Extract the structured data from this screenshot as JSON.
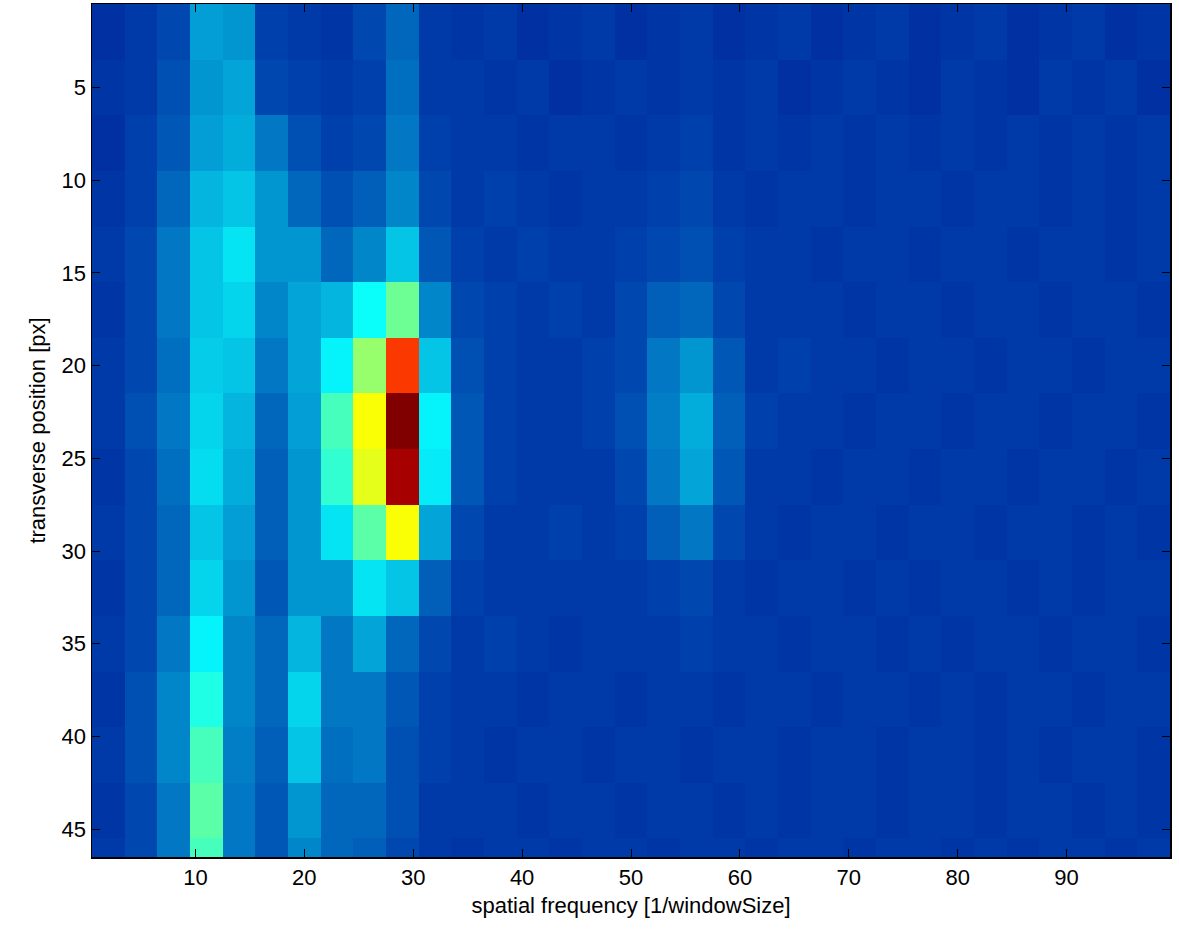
{
  "chart_data": {
    "type": "heatmap",
    "x_label": "spatial frequency [1/windowSize]",
    "y_label": "transverse position [px]",
    "color": "jet",
    "xlim": [
      0.5,
      99.5
    ],
    "ylim": [
      46.5,
      0.5
    ],
    "xticks": [
      10,
      20,
      30,
      40,
      50,
      60,
      70,
      80,
      90
    ],
    "yticks": [
      5,
      10,
      15,
      20,
      25,
      30,
      35,
      40,
      45
    ],
    "zlim": [
      0,
      1
    ],
    "x": [
      2,
      5,
      8,
      11,
      14,
      17,
      20,
      23,
      26,
      29,
      32,
      35,
      38,
      41,
      44,
      47,
      50,
      53,
      56,
      59,
      62,
      65,
      68,
      71,
      74,
      77,
      80,
      83,
      86,
      89,
      92,
      95,
      98
    ],
    "y": [
      2,
      5,
      8,
      11,
      14,
      17,
      20,
      23,
      26,
      29,
      32,
      35,
      38,
      41,
      44,
      47
    ],
    "z": [
      [
        0.1,
        0.12,
        0.14,
        0.25,
        0.24,
        0.13,
        0.12,
        0.11,
        0.14,
        0.18,
        0.12,
        0.11,
        0.12,
        0.1,
        0.11,
        0.12,
        0.1,
        0.11,
        0.12,
        0.1,
        0.11,
        0.12,
        0.1,
        0.11,
        0.12,
        0.1,
        0.11,
        0.12,
        0.1,
        0.11,
        0.12,
        0.1,
        0.11
      ],
      [
        0.11,
        0.12,
        0.15,
        0.24,
        0.26,
        0.14,
        0.13,
        0.12,
        0.13,
        0.19,
        0.12,
        0.12,
        0.11,
        0.12,
        0.1,
        0.11,
        0.12,
        0.11,
        0.12,
        0.11,
        0.12,
        0.1,
        0.11,
        0.12,
        0.11,
        0.1,
        0.12,
        0.11,
        0.1,
        0.12,
        0.11,
        0.12,
        0.1
      ],
      [
        0.1,
        0.13,
        0.16,
        0.25,
        0.27,
        0.2,
        0.15,
        0.13,
        0.14,
        0.2,
        0.13,
        0.12,
        0.12,
        0.11,
        0.12,
        0.12,
        0.11,
        0.12,
        0.13,
        0.11,
        0.12,
        0.11,
        0.12,
        0.11,
        0.12,
        0.11,
        0.12,
        0.11,
        0.12,
        0.11,
        0.12,
        0.11,
        0.12
      ],
      [
        0.11,
        0.13,
        0.18,
        0.28,
        0.3,
        0.24,
        0.18,
        0.15,
        0.17,
        0.22,
        0.14,
        0.12,
        0.13,
        0.12,
        0.11,
        0.12,
        0.12,
        0.13,
        0.14,
        0.12,
        0.11,
        0.12,
        0.12,
        0.11,
        0.12,
        0.12,
        0.11,
        0.12,
        0.12,
        0.11,
        0.12,
        0.11,
        0.12
      ],
      [
        0.12,
        0.14,
        0.2,
        0.3,
        0.34,
        0.24,
        0.24,
        0.18,
        0.22,
        0.3,
        0.16,
        0.13,
        0.12,
        0.13,
        0.12,
        0.12,
        0.13,
        0.14,
        0.15,
        0.13,
        0.12,
        0.12,
        0.11,
        0.12,
        0.12,
        0.11,
        0.12,
        0.12,
        0.11,
        0.12,
        0.12,
        0.11,
        0.12
      ],
      [
        0.11,
        0.14,
        0.2,
        0.3,
        0.32,
        0.22,
        0.26,
        0.28,
        0.38,
        0.48,
        0.22,
        0.14,
        0.13,
        0.12,
        0.13,
        0.12,
        0.14,
        0.17,
        0.18,
        0.14,
        0.12,
        0.12,
        0.12,
        0.11,
        0.12,
        0.12,
        0.11,
        0.12,
        0.12,
        0.11,
        0.12,
        0.12,
        0.11
      ],
      [
        0.12,
        0.14,
        0.19,
        0.31,
        0.3,
        0.2,
        0.26,
        0.36,
        0.52,
        0.82,
        0.3,
        0.15,
        0.13,
        0.12,
        0.12,
        0.13,
        0.14,
        0.2,
        0.24,
        0.16,
        0.12,
        0.13,
        0.12,
        0.12,
        0.11,
        0.12,
        0.12,
        0.11,
        0.12,
        0.12,
        0.11,
        0.12,
        0.12
      ],
      [
        0.12,
        0.15,
        0.2,
        0.32,
        0.28,
        0.18,
        0.25,
        0.44,
        0.62,
        1.0,
        0.36,
        0.16,
        0.13,
        0.12,
        0.12,
        0.13,
        0.15,
        0.21,
        0.27,
        0.17,
        0.13,
        0.12,
        0.12,
        0.11,
        0.12,
        0.12,
        0.11,
        0.12,
        0.12,
        0.11,
        0.12,
        0.12,
        0.11
      ],
      [
        0.11,
        0.14,
        0.19,
        0.33,
        0.27,
        0.17,
        0.24,
        0.42,
        0.6,
        0.96,
        0.35,
        0.16,
        0.13,
        0.12,
        0.12,
        0.12,
        0.14,
        0.2,
        0.26,
        0.16,
        0.12,
        0.12,
        0.11,
        0.12,
        0.12,
        0.11,
        0.12,
        0.12,
        0.11,
        0.12,
        0.12,
        0.11,
        0.12
      ],
      [
        0.12,
        0.14,
        0.18,
        0.3,
        0.25,
        0.17,
        0.24,
        0.34,
        0.46,
        0.62,
        0.26,
        0.14,
        0.12,
        0.12,
        0.13,
        0.12,
        0.13,
        0.17,
        0.2,
        0.14,
        0.12,
        0.11,
        0.12,
        0.12,
        0.11,
        0.12,
        0.12,
        0.11,
        0.12,
        0.12,
        0.11,
        0.12,
        0.11
      ],
      [
        0.11,
        0.14,
        0.18,
        0.32,
        0.24,
        0.16,
        0.24,
        0.24,
        0.34,
        0.3,
        0.17,
        0.13,
        0.12,
        0.12,
        0.12,
        0.12,
        0.12,
        0.13,
        0.14,
        0.12,
        0.11,
        0.12,
        0.12,
        0.11,
        0.12,
        0.11,
        0.12,
        0.12,
        0.11,
        0.12,
        0.11,
        0.12,
        0.12
      ],
      [
        0.12,
        0.14,
        0.2,
        0.36,
        0.22,
        0.18,
        0.28,
        0.2,
        0.26,
        0.18,
        0.14,
        0.12,
        0.13,
        0.12,
        0.11,
        0.12,
        0.12,
        0.12,
        0.13,
        0.12,
        0.12,
        0.11,
        0.12,
        0.12,
        0.11,
        0.12,
        0.11,
        0.12,
        0.12,
        0.11,
        0.12,
        0.12,
        0.11
      ],
      [
        0.11,
        0.15,
        0.22,
        0.4,
        0.22,
        0.18,
        0.32,
        0.2,
        0.2,
        0.16,
        0.13,
        0.12,
        0.12,
        0.11,
        0.12,
        0.12,
        0.11,
        0.12,
        0.12,
        0.11,
        0.12,
        0.12,
        0.11,
        0.12,
        0.12,
        0.11,
        0.12,
        0.11,
        0.12,
        0.12,
        0.11,
        0.12,
        0.12
      ],
      [
        0.12,
        0.15,
        0.22,
        0.44,
        0.21,
        0.17,
        0.3,
        0.19,
        0.2,
        0.15,
        0.13,
        0.12,
        0.11,
        0.12,
        0.12,
        0.11,
        0.12,
        0.12,
        0.11,
        0.12,
        0.12,
        0.11,
        0.12,
        0.12,
        0.11,
        0.12,
        0.12,
        0.11,
        0.12,
        0.11,
        0.12,
        0.12,
        0.11
      ],
      [
        0.11,
        0.14,
        0.2,
        0.46,
        0.2,
        0.16,
        0.24,
        0.18,
        0.18,
        0.15,
        0.12,
        0.12,
        0.12,
        0.11,
        0.12,
        0.12,
        0.11,
        0.12,
        0.12,
        0.11,
        0.12,
        0.11,
        0.12,
        0.12,
        0.11,
        0.12,
        0.12,
        0.11,
        0.12,
        0.12,
        0.11,
        0.12,
        0.11
      ],
      [
        0.12,
        0.14,
        0.2,
        0.44,
        0.2,
        0.16,
        0.22,
        0.18,
        0.17,
        0.14,
        0.12,
        0.11,
        0.12,
        0.12,
        0.11,
        0.12,
        0.12,
        0.11,
        0.12,
        0.12,
        0.11,
        0.12,
        0.12,
        0.11,
        0.12,
        0.12,
        0.11,
        0.12,
        0.11,
        0.12,
        0.12,
        0.11,
        0.12
      ]
    ]
  }
}
